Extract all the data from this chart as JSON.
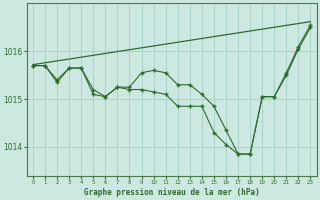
{
  "title": "Graphe pression niveau de la mer (hPa)",
  "background_color": "#cde8e0",
  "plot_bg_color": "#cde8e0",
  "grid_color": "#a8d4cc",
  "line_color": "#2d6b2d",
  "xlim": [
    -0.5,
    23.5
  ],
  "ylim": [
    1013.4,
    1017.0
  ],
  "yticks": [
    1014,
    1015,
    1016
  ],
  "xticks": [
    0,
    1,
    2,
    3,
    4,
    5,
    6,
    7,
    8,
    9,
    10,
    11,
    12,
    13,
    14,
    15,
    16,
    17,
    18,
    19,
    20,
    21,
    22,
    23
  ],
  "series1_x": [
    0,
    1,
    2,
    3,
    4,
    5,
    6,
    7,
    8,
    9,
    10,
    11,
    12,
    13,
    14,
    15,
    16,
    17,
    18,
    19,
    20,
    21,
    22,
    23
  ],
  "series1_y": [
    1015.7,
    1015.7,
    1015.4,
    1015.65,
    1015.65,
    1015.2,
    1015.05,
    1015.25,
    1015.25,
    1015.55,
    1015.6,
    1015.55,
    1015.3,
    1015.3,
    1015.1,
    1014.85,
    1014.35,
    1013.85,
    1013.85,
    1015.05,
    1015.05,
    1015.55,
    1016.1,
    1016.55
  ],
  "series2_x": [
    0,
    1,
    2,
    3,
    4,
    5,
    6,
    7,
    8,
    9,
    10,
    11,
    12,
    13,
    14,
    15,
    16,
    17,
    18,
    19,
    20,
    21,
    22,
    23
  ],
  "series2_y": [
    1015.7,
    1015.7,
    1015.35,
    1015.65,
    1015.65,
    1015.1,
    1015.05,
    1015.25,
    1015.2,
    1015.2,
    1015.15,
    1015.1,
    1014.85,
    1014.85,
    1014.85,
    1014.3,
    1014.05,
    1013.85,
    1013.85,
    1015.05,
    1015.05,
    1015.5,
    1016.05,
    1016.5
  ],
  "series3_x": [
    0,
    23
  ],
  "series3_y": [
    1015.72,
    1016.62
  ]
}
